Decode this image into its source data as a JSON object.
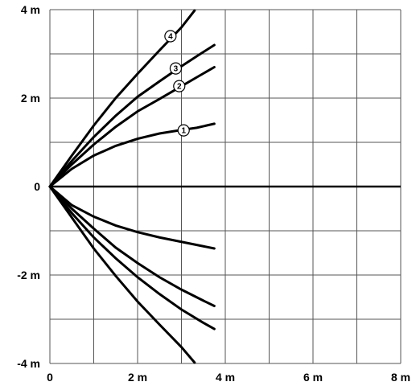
{
  "chart_data": {
    "type": "line",
    "xlim": [
      0,
      8
    ],
    "ylim": [
      -4,
      4
    ],
    "grid": true,
    "x_ticks": [
      {
        "value": 0,
        "label": "0"
      },
      {
        "value": 2,
        "label": "2 m"
      },
      {
        "value": 4,
        "label": "4 m"
      },
      {
        "value": 6,
        "label": "6 m"
      },
      {
        "value": 8,
        "label": "8 m"
      }
    ],
    "y_ticks": [
      {
        "value": 4,
        "label": "4 m"
      },
      {
        "value": 2,
        "label": "2 m"
      },
      {
        "value": 0,
        "label": "0"
      },
      {
        "value": -2,
        "label": "-2 m"
      },
      {
        "value": -4,
        "label": "-4 m"
      }
    ],
    "series": [
      {
        "marker": "1",
        "marker_at": [
          3.05,
          1.27
        ],
        "points": [
          [
            0,
            0
          ],
          [
            0.5,
            0.4
          ],
          [
            1,
            0.7
          ],
          [
            1.5,
            0.92
          ],
          [
            2,
            1.08
          ],
          [
            2.5,
            1.2
          ],
          [
            3,
            1.28
          ],
          [
            3.35,
            1.33
          ],
          [
            3.75,
            1.42
          ]
        ]
      },
      {
        "marker": "2",
        "marker_at": [
          2.95,
          2.27
        ],
        "points": [
          [
            0,
            0
          ],
          [
            0.5,
            0.5
          ],
          [
            1,
            0.95
          ],
          [
            1.5,
            1.35
          ],
          [
            2,
            1.7
          ],
          [
            2.5,
            1.98
          ],
          [
            3,
            2.27
          ],
          [
            3.4,
            2.5
          ],
          [
            3.75,
            2.7
          ]
        ]
      },
      {
        "marker": "3",
        "marker_at": [
          2.87,
          2.67
        ],
        "points": [
          [
            0,
            0
          ],
          [
            0.5,
            0.58
          ],
          [
            1,
            1.12
          ],
          [
            1.5,
            1.6
          ],
          [
            2,
            2.03
          ],
          [
            2.5,
            2.38
          ],
          [
            3,
            2.72
          ],
          [
            3.4,
            2.98
          ],
          [
            3.75,
            3.2
          ]
        ]
      },
      {
        "marker": "4",
        "marker_at": [
          2.75,
          3.4
        ],
        "points": [
          [
            0,
            0
          ],
          [
            0.5,
            0.7
          ],
          [
            1,
            1.38
          ],
          [
            1.5,
            2.0
          ],
          [
            2,
            2.55
          ],
          [
            2.5,
            3.08
          ],
          [
            3,
            3.6
          ],
          [
            3.3,
            3.98
          ]
        ]
      },
      {
        "marker": "",
        "points": [
          [
            0,
            0
          ],
          [
            0.5,
            -0.42
          ],
          [
            1,
            -0.68
          ],
          [
            1.5,
            -0.88
          ],
          [
            2,
            -1.03
          ],
          [
            2.5,
            -1.15
          ],
          [
            3,
            -1.25
          ],
          [
            3.5,
            -1.35
          ],
          [
            3.75,
            -1.4
          ]
        ]
      },
      {
        "marker": "",
        "points": [
          [
            0,
            0
          ],
          [
            0.5,
            -0.5
          ],
          [
            1,
            -0.95
          ],
          [
            1.5,
            -1.38
          ],
          [
            2,
            -1.73
          ],
          [
            2.5,
            -2.05
          ],
          [
            3,
            -2.33
          ],
          [
            3.5,
            -2.58
          ],
          [
            3.75,
            -2.7
          ]
        ]
      },
      {
        "marker": "",
        "points": [
          [
            0,
            0
          ],
          [
            0.5,
            -0.6
          ],
          [
            1,
            -1.15
          ],
          [
            1.5,
            -1.62
          ],
          [
            2,
            -2.05
          ],
          [
            2.5,
            -2.43
          ],
          [
            3,
            -2.78
          ],
          [
            3.5,
            -3.08
          ],
          [
            3.75,
            -3.22
          ]
        ]
      },
      {
        "marker": "",
        "points": [
          [
            0,
            0
          ],
          [
            0.5,
            -0.7
          ],
          [
            1,
            -1.4
          ],
          [
            1.5,
            -2.02
          ],
          [
            2,
            -2.6
          ],
          [
            2.5,
            -3.12
          ],
          [
            3,
            -3.63
          ],
          [
            3.3,
            -3.98
          ]
        ]
      }
    ]
  }
}
